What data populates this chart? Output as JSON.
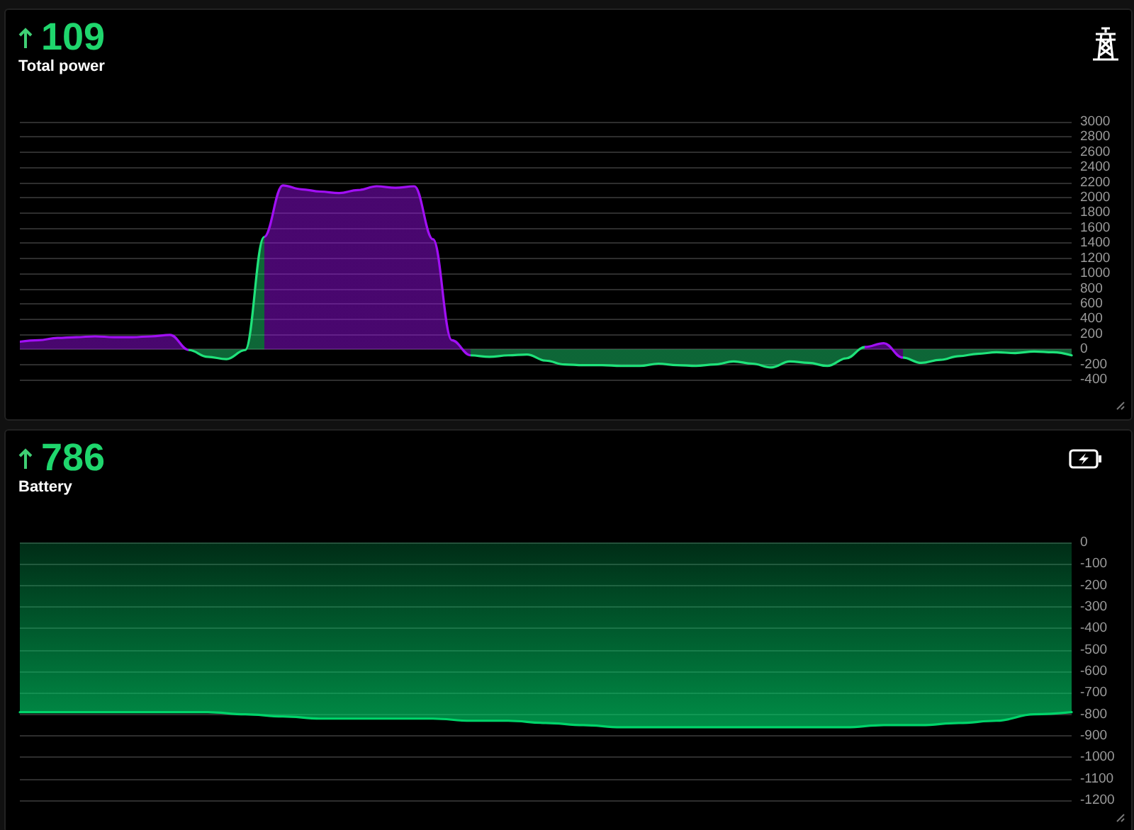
{
  "chart_data": [
    {
      "type": "area",
      "title": "109",
      "subtitle": "Total power",
      "categories": [
        null,
        null,
        null,
        null,
        null,
        null,
        null,
        null,
        null,
        null,
        null,
        null,
        null,
        null,
        null,
        null,
        null,
        null,
        null,
        null,
        null,
        null,
        null,
        null,
        null,
        null,
        null,
        null,
        null,
        null,
        null,
        null,
        null,
        null,
        null,
        null,
        null,
        null,
        null,
        null,
        null,
        null,
        null,
        null,
        null,
        null,
        null,
        null,
        null,
        null,
        null,
        null,
        null,
        null,
        null,
        null,
        null
      ],
      "series": [
        {
          "color": "#a10ff5",
          "values": [
            100,
            120,
            150,
            160,
            170,
            160,
            160,
            170,
            190,
            -10,
            -100,
            -130,
            -10,
            1480,
            2160,
            2110,
            2080,
            2060,
            2100,
            2150,
            2130,
            2150,
            1450,
            120,
            -80,
            -100,
            -80,
            -70,
            -150,
            -200,
            -210,
            -210,
            -220,
            -220,
            -190,
            -210,
            -220,
            -200,
            -160,
            -190,
            -240,
            -160,
            -180,
            -220,
            -120,
            30,
            80,
            -110,
            -180,
            -140,
            -90,
            -60,
            -40,
            -50,
            -30,
            -40,
            -80
          ],
          "colors": [
            "#a10ff5",
            "#a10ff5",
            "#a10ff5",
            "#a10ff5",
            "#a10ff5",
            "#a10ff5",
            "#a10ff5",
            "#a10ff5",
            "#a10ff5",
            "#1ee37a",
            "#1ee37a",
            "#1ee37a",
            "#1ee37a",
            "#a10ff5",
            "#a10ff5",
            "#a10ff5",
            "#a10ff5",
            "#a10ff5",
            "#a10ff5",
            "#a10ff5",
            "#a10ff5",
            "#a10ff5",
            "#a10ff5",
            "#a10ff5",
            "#1ee37a",
            "#1ee37a",
            "#1ee37a",
            "#1ee37a",
            "#1ee37a",
            "#1ee37a",
            "#1ee37a",
            "#1ee37a",
            "#1ee37a",
            "#1ee37a",
            "#1ee37a",
            "#1ee37a",
            "#1ee37a",
            "#1ee37a",
            "#1ee37a",
            "#1ee37a",
            "#1ee37a",
            "#1ee37a",
            "#1ee37a",
            "#1ee37a",
            "#1ee37a",
            "#a10ff5",
            "#a10ff5",
            "#1ee37a",
            "#1ee37a",
            "#1ee37a",
            "#1ee37a",
            "#1ee37a",
            "#1ee37a",
            "#1ee37a",
            "#1ee37a",
            "#1ee37a",
            "#1ee37a"
          ]
        }
      ],
      "ylim": [
        -400,
        3000
      ],
      "yticks": [
        -400,
        -200,
        0,
        200,
        400,
        600,
        800,
        1000,
        1200,
        1400,
        1600,
        1800,
        2000,
        2200,
        2400,
        2600,
        2800,
        3000
      ],
      "grid": "y"
    },
    {
      "type": "area",
      "title": "786",
      "subtitle": "Battery",
      "categories": [
        null,
        null,
        null,
        null,
        null,
        null,
        null,
        null,
        null,
        null,
        null,
        null,
        null,
        null,
        null,
        null,
        null,
        null,
        null,
        null,
        null,
        null,
        null,
        null,
        null,
        null,
        null,
        null,
        null
      ],
      "series": [
        {
          "color": "#00d46a",
          "values": [
            -790,
            -790,
            -790,
            -790,
            -790,
            -790,
            -800,
            -810,
            -820,
            -820,
            -820,
            -820,
            -830,
            -830,
            -840,
            -850,
            -860,
            -860,
            -860,
            -860,
            -860,
            -860,
            -860,
            -850,
            -850,
            -840,
            -830,
            -800,
            -790
          ]
        }
      ],
      "ylim": [
        -1200,
        0
      ],
      "yticks": [
        -1200,
        -1100,
        -1000,
        -900,
        -800,
        -700,
        -600,
        -500,
        -400,
        -300,
        -200,
        -100,
        0
      ],
      "grid": "y"
    }
  ]
}
